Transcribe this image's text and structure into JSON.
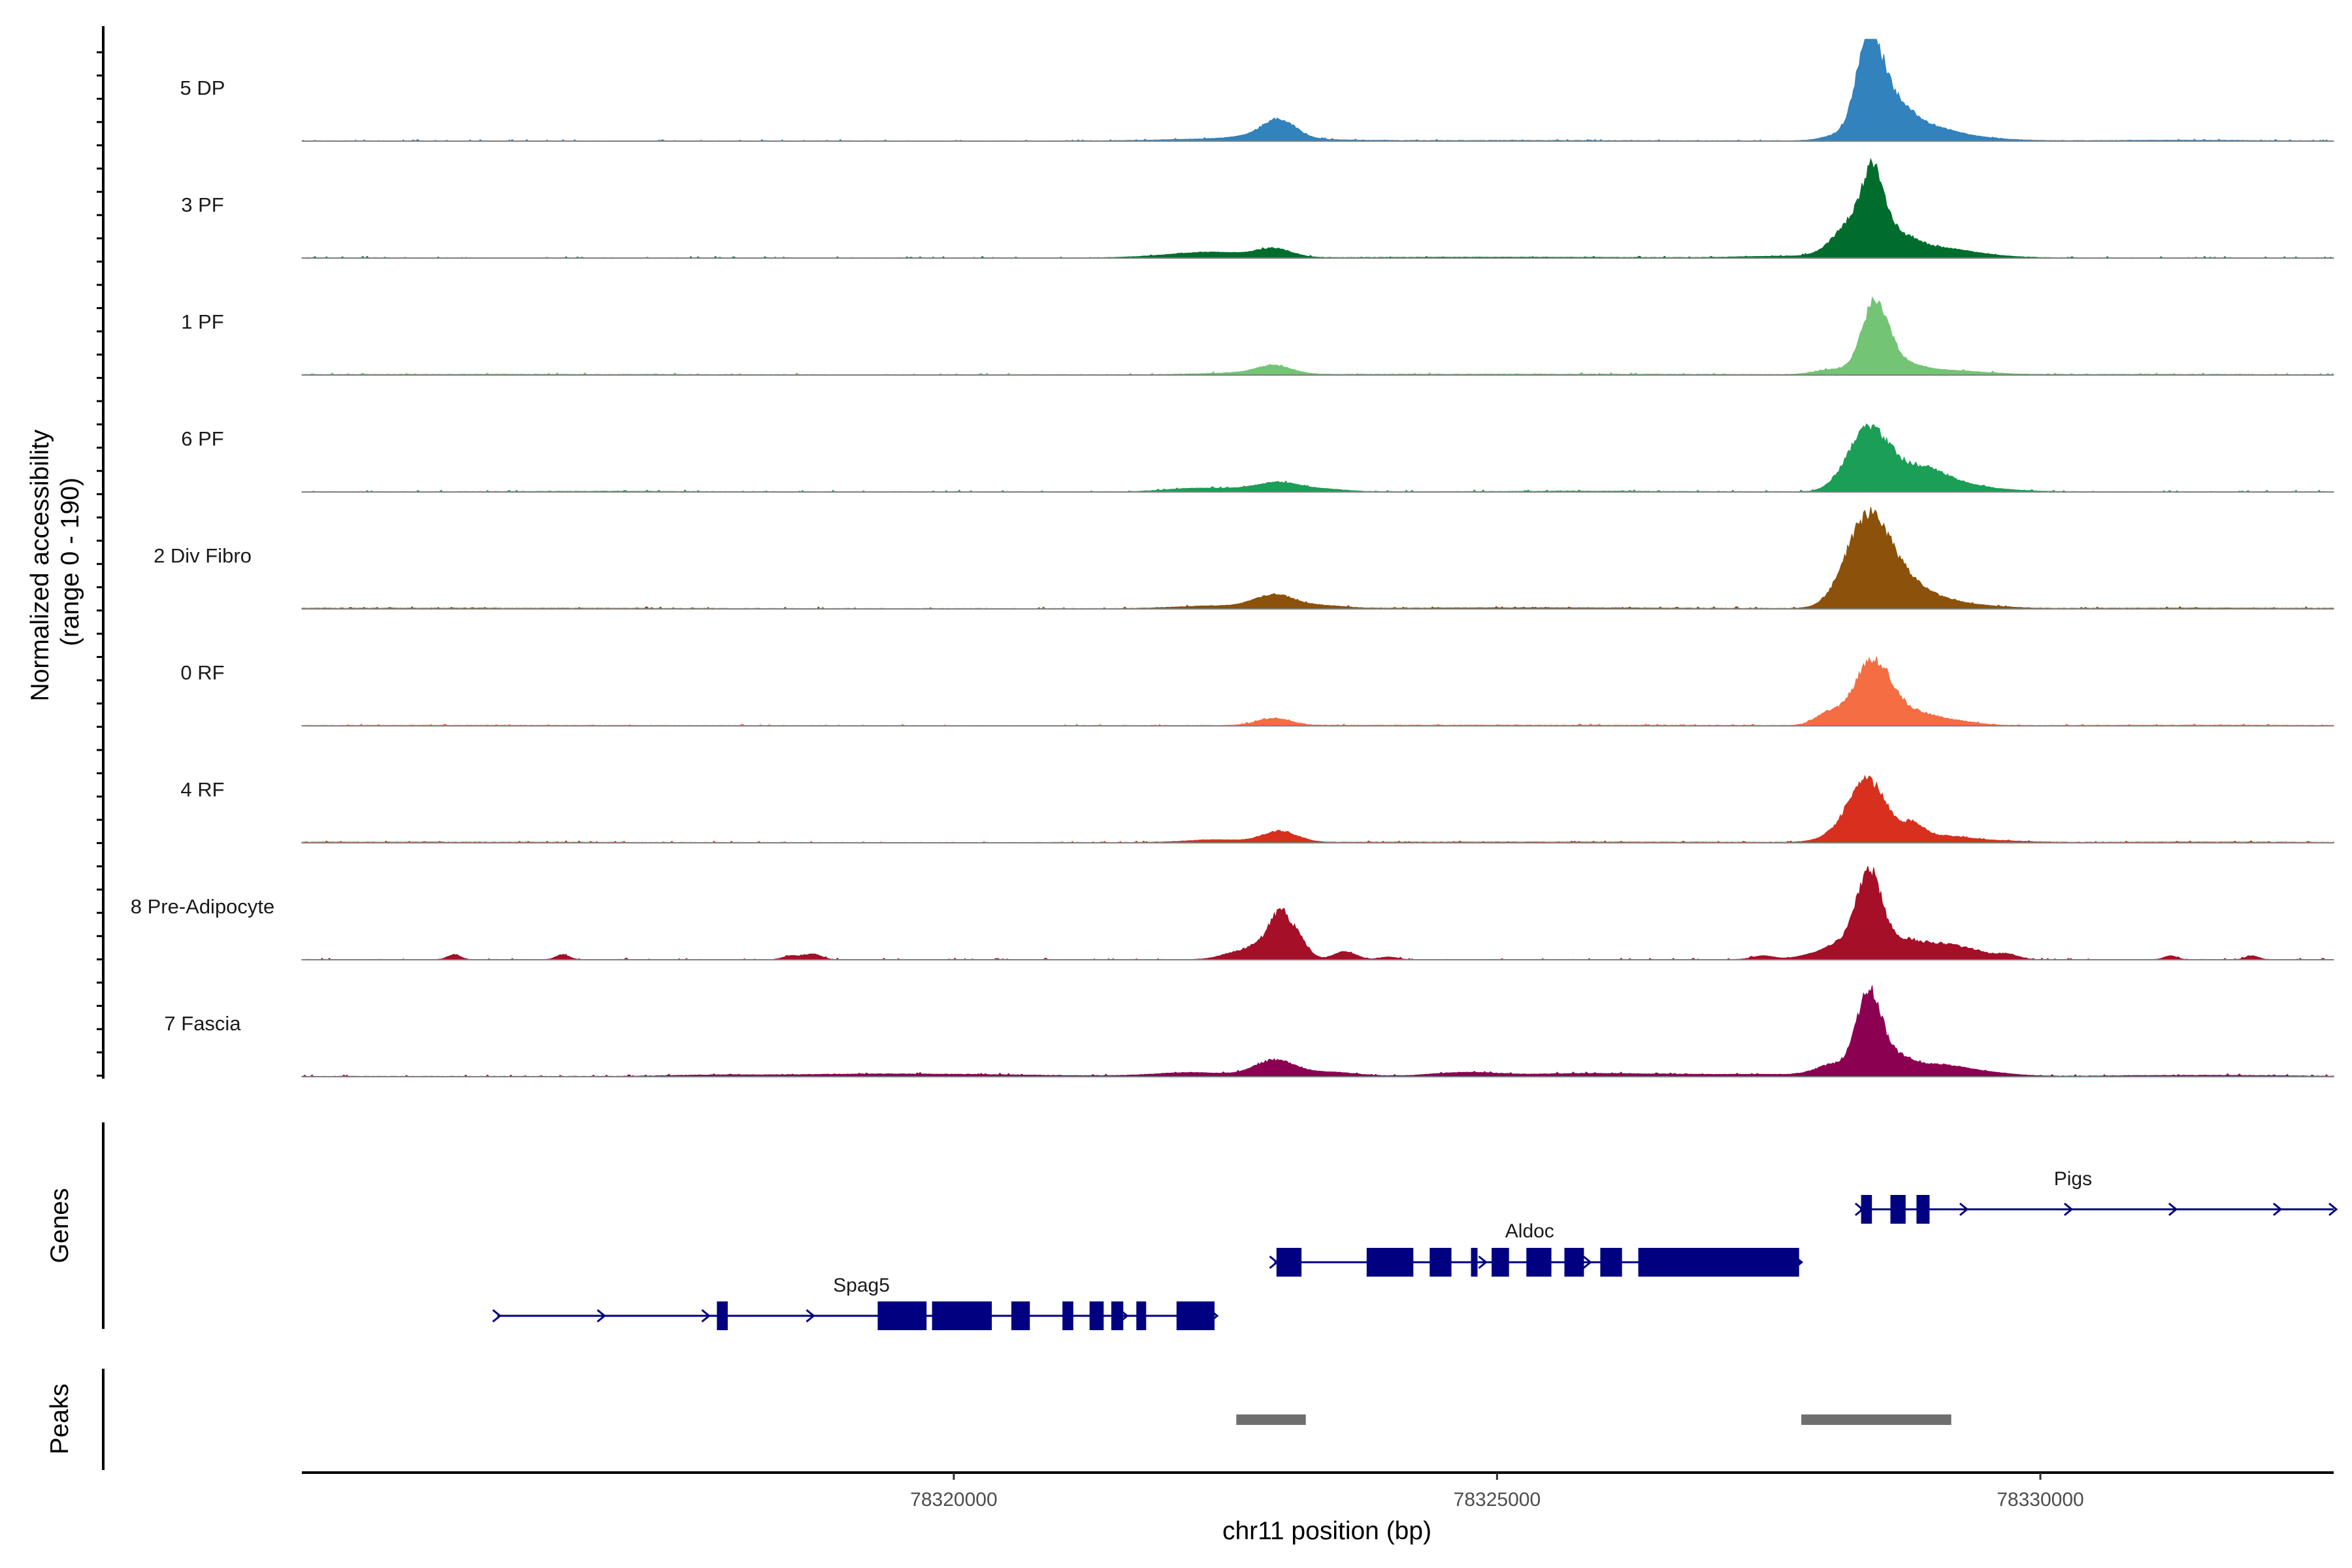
{
  "chart_data": {
    "type": "area",
    "chromosome": "chr11",
    "x_range": [
      78314000,
      78332700
    ],
    "ylabel_line1": "Normalized accessibility",
    "ylabel_line2": "(range 0 - 190)",
    "y_range": [
      0,
      190
    ],
    "xlabel": "chr11 position (bp)",
    "x_ticks": [
      {
        "value": 78320000,
        "label": "78320000"
      },
      {
        "value": 78325000,
        "label": "78325000"
      },
      {
        "value": 78330000,
        "label": "78330000"
      }
    ],
    "genes_label": "Genes",
    "peaks_label": "Peaks",
    "series": [
      {
        "name": "5 DP",
        "color": "#3182bd",
        "baseline": 0.6,
        "noise": 0.9,
        "peaks": [
          [
            78312000,
            0.8,
            900
          ],
          [
            78322700,
            4.5,
            600
          ],
          [
            78323000,
            28,
            140
          ],
          [
            78322900,
            9,
            220
          ],
          [
            78325200,
            0.8,
            1200
          ],
          [
            78328150,
            10,
            150
          ],
          [
            78328420,
            160,
            110
          ],
          [
            78328600,
            65,
            180
          ],
          [
            78328900,
            22,
            260
          ],
          [
            78329250,
            7,
            350
          ],
          [
            78331300,
            1.2,
            700
          ]
        ]
      },
      {
        "name": "3 PF",
        "color": "#006d2c",
        "baseline": 0.6,
        "noise": 0.9,
        "peaks": [
          [
            78311800,
            0.8,
            900
          ],
          [
            78322200,
            7,
            350
          ],
          [
            78322500,
            5,
            250
          ],
          [
            78322950,
            16,
            160
          ],
          [
            78325100,
            1.2,
            1200
          ],
          [
            78327700,
            3,
            400
          ],
          [
            78328100,
            12,
            140
          ],
          [
            78328300,
            60,
            150
          ],
          [
            78328470,
            125,
            100
          ],
          [
            78328700,
            35,
            160
          ],
          [
            78329050,
            15,
            250
          ],
          [
            78329400,
            5,
            300
          ]
        ]
      },
      {
        "name": "1 PF",
        "color": "#74c476",
        "baseline": 0.8,
        "noise": 1.0,
        "peaks": [
          [
            78315800,
            0.8,
            1500
          ],
          [
            78322600,
            3,
            300
          ],
          [
            78322950,
            15,
            160
          ],
          [
            78325200,
            1.0,
            2000
          ],
          [
            78328100,
            9,
            160
          ],
          [
            78328480,
            125,
            120
          ],
          [
            78328700,
            18,
            180
          ],
          [
            78329100,
            8,
            350
          ],
          [
            78331000,
            0.8,
            900
          ]
        ]
      },
      {
        "name": "6 PF",
        "color": "#1b9e55",
        "baseline": 0.6,
        "noise": 1.0,
        "peaks": [
          [
            78316800,
            0.8,
            700
          ],
          [
            78322200,
            6,
            250
          ],
          [
            78322700,
            5,
            230
          ],
          [
            78323000,
            15,
            180
          ],
          [
            78323400,
            5,
            200
          ],
          [
            78325800,
            1.0,
            700
          ],
          [
            78328150,
            10,
            120
          ],
          [
            78328400,
            105,
            160
          ],
          [
            78328650,
            40,
            150
          ],
          [
            78328950,
            32,
            160
          ],
          [
            78329200,
            13,
            200
          ],
          [
            78329500,
            5,
            300
          ]
        ]
      },
      {
        "name": "2 Div Fibro",
        "color": "#8c510a",
        "baseline": 0.8,
        "noise": 1.0,
        "peaks": [
          [
            78315500,
            0.8,
            1500
          ],
          [
            78322400,
            5,
            350
          ],
          [
            78322950,
            24,
            180
          ],
          [
            78323400,
            5,
            200
          ],
          [
            78325400,
            1.5,
            1200
          ],
          [
            78328150,
            18,
            140
          ],
          [
            78328400,
            145,
            170
          ],
          [
            78328650,
            55,
            180
          ],
          [
            78328950,
            20,
            220
          ],
          [
            78329350,
            6,
            300
          ],
          [
            78331500,
            1.0,
            1000
          ]
        ]
      },
      {
        "name": "0 RF",
        "color": "#f46d43",
        "baseline": 0.6,
        "noise": 0.8,
        "peaks": [
          [
            78315500,
            0.6,
            1500
          ],
          [
            78322950,
            13,
            150
          ],
          [
            78325000,
            0.8,
            2000
          ],
          [
            78328050,
            22,
            120
          ],
          [
            78328250,
            12,
            120
          ],
          [
            78328450,
            113,
            140
          ],
          [
            78328650,
            24,
            120
          ],
          [
            78328850,
            18,
            160
          ],
          [
            78329150,
            10,
            220
          ],
          [
            78331500,
            0.8,
            1000
          ]
        ]
      },
      {
        "name": "4 RF",
        "color": "#d7301f",
        "baseline": 0.6,
        "noise": 0.9,
        "peaks": [
          [
            78315000,
            0.8,
            1500
          ],
          [
            78322400,
            5,
            250
          ],
          [
            78323000,
            20,
            160
          ],
          [
            78325300,
            1.0,
            2000
          ],
          [
            78328100,
            10,
            150
          ],
          [
            78328370,
            100,
            150
          ],
          [
            78328550,
            32,
            110
          ],
          [
            78328820,
            32,
            110
          ],
          [
            78329100,
            10,
            200
          ],
          [
            78329500,
            4,
            300
          ],
          [
            78331500,
            1.0,
            900
          ]
        ]
      },
      {
        "name": "8 Pre-Adipocyte",
        "color": "#a50f27",
        "baseline": 0.4,
        "noise": 0.9,
        "peaks": [
          [
            78315400,
            9,
            60
          ],
          [
            78316400,
            9,
            60
          ],
          [
            78318500,
            7,
            70
          ],
          [
            78318700,
            10,
            80
          ],
          [
            78322600,
            12,
            150
          ],
          [
            78322900,
            35,
            140
          ],
          [
            78323000,
            50,
            80
          ],
          [
            78323150,
            40,
            100
          ],
          [
            78323600,
            15,
            100
          ],
          [
            78324000,
            5,
            80
          ],
          [
            78327450,
            7,
            100
          ],
          [
            78327900,
            8,
            150
          ],
          [
            78328100,
            14,
            130
          ],
          [
            78328250,
            24,
            120
          ],
          [
            78328430,
            150,
            110
          ],
          [
            78328700,
            30,
            150
          ],
          [
            78329050,
            28,
            200
          ],
          [
            78329400,
            12,
            150
          ],
          [
            78329700,
            9,
            100
          ],
          [
            78331200,
            7,
            60
          ],
          [
            78331950,
            7,
            60
          ]
        ]
      },
      {
        "name": "7 Fascia",
        "color": "#8c0052",
        "baseline": 0.8,
        "noise": 1.0,
        "peaks": [
          [
            78317800,
            2,
            400
          ],
          [
            78319000,
            2.5,
            700
          ],
          [
            78320000,
            3,
            900
          ],
          [
            78322200,
            7,
            350
          ],
          [
            78322950,
            28,
            180
          ],
          [
            78323450,
            8,
            250
          ],
          [
            78324700,
            7,
            300
          ],
          [
            78325700,
            4,
            500
          ],
          [
            78326500,
            3,
            600
          ],
          [
            78327600,
            3,
            500
          ],
          [
            78328100,
            20,
            160
          ],
          [
            78328420,
            145,
            110
          ],
          [
            78328650,
            30,
            150
          ],
          [
            78329000,
            18,
            250
          ],
          [
            78329400,
            8,
            300
          ],
          [
            78331500,
            2,
            700
          ]
        ]
      }
    ],
    "genes": [
      {
        "name": "Spag5",
        "start": 78315800,
        "end": 78322400,
        "label_pos": 78319150,
        "exons": [
          [
            78317820,
            78317920
          ],
          [
            78319300,
            78319750
          ],
          [
            78319800,
            78320350
          ],
          [
            78320530,
            78320700
          ],
          [
            78321000,
            78321100
          ],
          [
            78321250,
            78321380
          ],
          [
            78321450,
            78321560
          ],
          [
            78321680,
            78321770
          ],
          [
            78322050,
            78322400
          ]
        ]
      },
      {
        "name": "Aldoc",
        "start": 78322950,
        "end": 78327780,
        "label_pos": 78325300,
        "exons": [
          [
            78322970,
            78323200
          ],
          [
            78323800,
            78324230
          ],
          [
            78324380,
            78324580
          ],
          [
            78324760,
            78324820
          ],
          [
            78324950,
            78325110
          ],
          [
            78325270,
            78325500
          ],
          [
            78325620,
            78325800
          ],
          [
            78325950,
            78326150
          ],
          [
            78326300,
            78327780
          ]
        ]
      },
      {
        "name": "Pigs",
        "start": 78328340,
        "end": 78332700,
        "label_pos": 78330300,
        "exons": [
          [
            78328350,
            78328450
          ],
          [
            78328620,
            78328760
          ],
          [
            78328860,
            78328980
          ]
        ]
      }
    ],
    "peaks": [
      [
        78322600,
        78323240
      ],
      [
        78327800,
        78329180
      ]
    ]
  }
}
